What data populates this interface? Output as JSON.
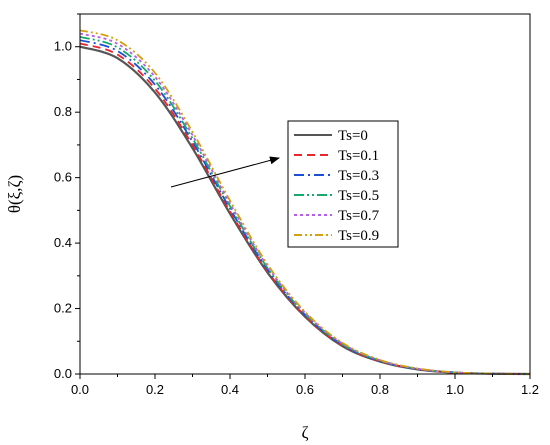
{
  "chart_data": {
    "type": "line",
    "xlabel": "ζ",
    "ylabel": "θ(ξ,ζ)",
    "xlim": [
      0.0,
      1.2
    ],
    "ylim": [
      0.0,
      1.1
    ],
    "x_ticks": [
      "0.0",
      "0.2",
      "0.4",
      "0.6",
      "0.8",
      "1.0",
      "1.2"
    ],
    "y_ticks": [
      "0.0",
      "0.2",
      "0.4",
      "0.6",
      "0.8",
      "1.0"
    ],
    "grid": false,
    "legend_position": "center-right",
    "annotation": "arrow indicating increasing Ts",
    "x": [
      0.0,
      0.1,
      0.2,
      0.3,
      0.4,
      0.5,
      0.6,
      0.7,
      0.8,
      0.9,
      1.0,
      1.1,
      1.2
    ],
    "series": [
      {
        "name": "Ts=0",
        "color": "#555555",
        "dash": "",
        "values": [
          1.0,
          0.965,
          0.86,
          0.69,
          0.49,
          0.31,
          0.175,
          0.085,
          0.038,
          0.014,
          0.004,
          0.001,
          0.0
        ]
      },
      {
        "name": "Ts=0.1",
        "color": "#e8262b",
        "dash": "8,5",
        "values": [
          1.01,
          0.976,
          0.872,
          0.7,
          0.497,
          0.314,
          0.178,
          0.087,
          0.039,
          0.015,
          0.004,
          0.001,
          0.0
        ]
      },
      {
        "name": "Ts=0.3",
        "color": "#1a4fd6",
        "dash": "10,4,2,4",
        "values": [
          1.02,
          0.987,
          0.884,
          0.71,
          0.505,
          0.319,
          0.181,
          0.089,
          0.04,
          0.015,
          0.005,
          0.001,
          0.0
        ]
      },
      {
        "name": "Ts=0.5",
        "color": "#17a86b",
        "dash": "10,3,2,3,2,3",
        "values": [
          1.03,
          0.998,
          0.896,
          0.72,
          0.513,
          0.324,
          0.184,
          0.091,
          0.041,
          0.016,
          0.005,
          0.001,
          0.0
        ]
      },
      {
        "name": "Ts=0.7",
        "color": "#b65ee6",
        "dash": "3,3",
        "values": [
          1.04,
          1.009,
          0.908,
          0.73,
          0.521,
          0.329,
          0.187,
          0.093,
          0.042,
          0.016,
          0.005,
          0.001,
          0.0
        ]
      },
      {
        "name": "Ts=0.9",
        "color": "#d4a010",
        "dash": "8,3,2,3,2,3",
        "values": [
          1.05,
          1.02,
          0.92,
          0.74,
          0.53,
          0.335,
          0.19,
          0.095,
          0.043,
          0.017,
          0.005,
          0.001,
          0.0
        ]
      }
    ]
  }
}
